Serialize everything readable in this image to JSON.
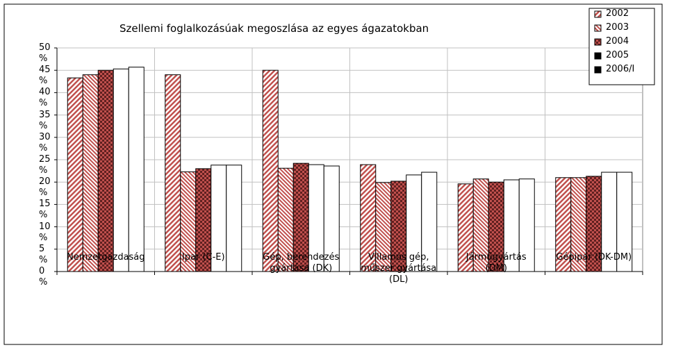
{
  "chart_data": {
    "type": "bar",
    "title": "Szellemi foglalkozásúak megoszlása az egyes ágazatokban",
    "categories": [
      "Nemzetgazdaság",
      "Ipar (C-E)",
      "Gép, berendezés gyártása (DK)",
      "Villamos gép, műszer gyártása (DL)",
      "Járműgyártás (DM)",
      "Gépipar (DK-DM)"
    ],
    "series": [
      {
        "name": "2002",
        "color": "#c0504d",
        "pattern": "hatch",
        "values": [
          43.3,
          44.0,
          45.0,
          23.9,
          19.6,
          21.0
        ]
      },
      {
        "name": "2003",
        "color": "#c0504d",
        "pattern": "hatch-dense",
        "values": [
          44.0,
          22.3,
          23.1,
          19.9,
          20.7,
          21.0
        ]
      },
      {
        "name": "2004",
        "color": "#c0504d",
        "pattern": "check",
        "values": [
          45.0,
          23.0,
          24.2,
          20.2,
          20.0,
          21.3
        ]
      },
      {
        "name": "2005",
        "color": "#ffffff",
        "pattern": "solid",
        "values": [
          45.3,
          23.8,
          23.9,
          21.6,
          20.5,
          22.2
        ]
      },
      {
        "name": "2006/I",
        "color": "#ffffff",
        "pattern": "solid",
        "values": [
          45.7,
          23.8,
          23.6,
          22.2,
          20.7,
          22.2
        ]
      }
    ],
    "ylim": [
      0,
      50
    ],
    "yticks": [
      {
        "value": 0,
        "label": "0 %"
      },
      {
        "value": 5,
        "label": "5 %"
      },
      {
        "value": 10,
        "label": "10 %"
      },
      {
        "value": 15,
        "label": "15 %"
      },
      {
        "value": 20,
        "label": "20 %"
      },
      {
        "value": 25,
        "label": "25 %"
      },
      {
        "value": 30,
        "label": "30 %"
      },
      {
        "value": 35,
        "label": "35 %"
      },
      {
        "value": 40,
        "label": "40 %"
      },
      {
        "value": 45,
        "label": "45 %"
      },
      {
        "value": 50,
        "label": "50 %"
      }
    ],
    "grid": true,
    "legend": "top-right"
  }
}
